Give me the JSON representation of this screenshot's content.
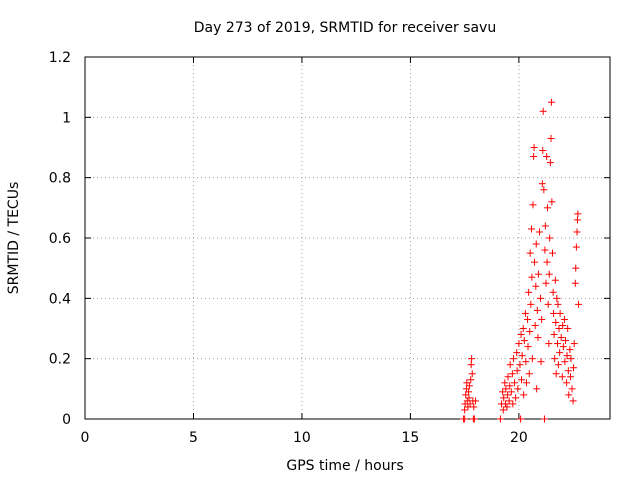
{
  "chart_data": {
    "type": "scatter",
    "title": "Day 273 of 2019, SRMTID for receiver savu",
    "xlabel": "GPS time / hours",
    "ylabel": "SRMTID / TECUs",
    "xlim": [
      0,
      24.2
    ],
    "ylim": [
      0,
      1.2
    ],
    "xticks": [
      0,
      5,
      10,
      15,
      20
    ],
    "xtick_labels": [
      "0",
      "5",
      "10",
      "15",
      "20"
    ],
    "yticks": [
      0,
      0.2,
      0.4,
      0.6,
      0.8,
      1.0,
      1.2
    ],
    "ytick_labels": [
      "0",
      "0.2",
      "0.4",
      "0.6",
      "0.8",
      "1",
      "1.2"
    ],
    "grid": true,
    "marker": "+",
    "marker_color": "#ff0000",
    "series": [
      {
        "name": "SRMTID",
        "points": [
          [
            17.45,
            0.0
          ],
          [
            17.5,
            0.0
          ],
          [
            17.9,
            0.0
          ],
          [
            17.95,
            0.0
          ],
          [
            17.5,
            0.03
          ],
          [
            17.52,
            0.05
          ],
          [
            17.55,
            0.08
          ],
          [
            17.58,
            0.1
          ],
          [
            17.6,
            0.12
          ],
          [
            17.62,
            0.06
          ],
          [
            17.65,
            0.04
          ],
          [
            17.68,
            0.09
          ],
          [
            17.7,
            0.07
          ],
          [
            17.72,
            0.11
          ],
          [
            17.75,
            0.05
          ],
          [
            17.78,
            0.13
          ],
          [
            17.8,
            0.18
          ],
          [
            17.82,
            0.2
          ],
          [
            17.85,
            0.15
          ],
          [
            17.88,
            0.06
          ],
          [
            17.92,
            0.04
          ],
          [
            18.0,
            0.06
          ],
          [
            19.15,
            0.0
          ],
          [
            19.2,
            0.05
          ],
          [
            19.25,
            0.09
          ],
          [
            19.28,
            0.03
          ],
          [
            19.3,
            0.07
          ],
          [
            19.35,
            0.12
          ],
          [
            19.38,
            0.05
          ],
          [
            19.4,
            0.1
          ],
          [
            19.45,
            0.04
          ],
          [
            19.48,
            0.08
          ],
          [
            19.5,
            0.14
          ],
          [
            19.55,
            0.06
          ],
          [
            19.58,
            0.11
          ],
          [
            19.6,
            0.18
          ],
          [
            19.65,
            0.09
          ],
          [
            19.7,
            0.15
          ],
          [
            19.72,
            0.05
          ],
          [
            19.75,
            0.2
          ],
          [
            19.8,
            0.12
          ],
          [
            19.85,
            0.07
          ],
          [
            19.9,
            0.22
          ],
          [
            19.92,
            0.16
          ],
          [
            19.95,
            0.1
          ],
          [
            20.0,
            0.25
          ],
          [
            20.05,
            0.18
          ],
          [
            20.08,
            0.0
          ],
          [
            20.1,
            0.28
          ],
          [
            20.12,
            0.13
          ],
          [
            20.15,
            0.21
          ],
          [
            20.2,
            0.3
          ],
          [
            20.22,
            0.08
          ],
          [
            20.25,
            0.26
          ],
          [
            20.3,
            0.35
          ],
          [
            20.32,
            0.19
          ],
          [
            20.35,
            0.12
          ],
          [
            20.4,
            0.33
          ],
          [
            20.42,
            0.24
          ],
          [
            20.45,
            0.42
          ],
          [
            20.48,
            0.15
          ],
          [
            20.5,
            0.29
          ],
          [
            20.52,
            0.55
          ],
          [
            20.55,
            0.38
          ],
          [
            20.58,
            0.63
          ],
          [
            20.6,
            0.47
          ],
          [
            20.62,
            0.2
          ],
          [
            20.65,
            0.71
          ],
          [
            20.68,
            0.87
          ],
          [
            20.7,
            0.9
          ],
          [
            20.72,
            0.52
          ],
          [
            20.75,
            0.31
          ],
          [
            20.78,
            0.44
          ],
          [
            20.8,
            0.58
          ],
          [
            20.82,
            0.1
          ],
          [
            20.85,
            0.36
          ],
          [
            20.88,
            0.27
          ],
          [
            20.9,
            0.48
          ],
          [
            20.95,
            0.62
          ],
          [
            21.0,
            0.4
          ],
          [
            21.02,
            0.19
          ],
          [
            21.05,
            0.33
          ],
          [
            21.08,
            0.78
          ],
          [
            21.1,
            0.89
          ],
          [
            21.12,
            1.02
          ],
          [
            21.15,
            0.76
          ],
          [
            21.18,
            0.0
          ],
          [
            21.2,
            0.56
          ],
          [
            21.22,
            0.64
          ],
          [
            21.25,
            0.45
          ],
          [
            21.28,
            0.87
          ],
          [
            21.3,
            0.52
          ],
          [
            21.32,
            0.7
          ],
          [
            21.35,
            0.38
          ],
          [
            21.38,
            0.25
          ],
          [
            21.4,
            0.48
          ],
          [
            21.42,
            0.6
          ],
          [
            21.45,
            0.85
          ],
          [
            21.48,
            0.93
          ],
          [
            21.5,
            1.05
          ],
          [
            21.52,
            0.72
          ],
          [
            21.55,
            0.55
          ],
          [
            21.58,
            0.42
          ],
          [
            21.6,
            0.35
          ],
          [
            21.62,
            0.28
          ],
          [
            21.65,
            0.2
          ],
          [
            21.68,
            0.46
          ],
          [
            21.7,
            0.32
          ],
          [
            21.72,
            0.15
          ],
          [
            21.75,
            0.4
          ],
          [
            21.78,
            0.25
          ],
          [
            21.8,
            0.38
          ],
          [
            21.82,
            0.18
          ],
          [
            21.85,
            0.3
          ],
          [
            21.88,
            0.22
          ],
          [
            21.9,
            0.35
          ],
          [
            21.95,
            0.27
          ],
          [
            22.0,
            0.14
          ],
          [
            22.02,
            0.31
          ],
          [
            22.05,
            0.24
          ],
          [
            22.1,
            0.33
          ],
          [
            22.12,
            0.19
          ],
          [
            22.15,
            0.26
          ],
          [
            22.2,
            0.12
          ],
          [
            22.22,
            0.21
          ],
          [
            22.25,
            0.3
          ],
          [
            22.28,
            0.16
          ],
          [
            22.3,
            0.08
          ],
          [
            22.35,
            0.23
          ],
          [
            22.38,
            0.14
          ],
          [
            22.4,
            0.2
          ],
          [
            22.45,
            0.1
          ],
          [
            22.5,
            0.06
          ],
          [
            22.52,
            0.17
          ],
          [
            22.55,
            0.25
          ],
          [
            22.6,
            0.45
          ],
          [
            22.62,
            0.5
          ],
          [
            22.65,
            0.57
          ],
          [
            22.68,
            0.62
          ],
          [
            22.7,
            0.66
          ],
          [
            22.72,
            0.68
          ],
          [
            22.75,
            0.38
          ]
        ]
      }
    ]
  }
}
